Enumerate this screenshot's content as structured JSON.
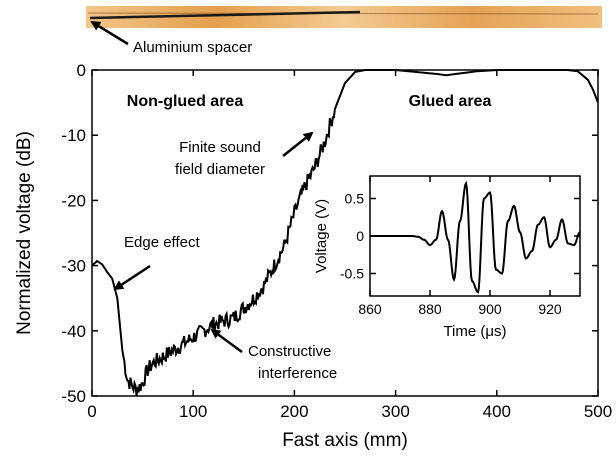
{
  "chart_data": [
    {
      "type": "line",
      "xlabel": "Fast axis (mm)",
      "ylabel": "Normalized voltage (dB)",
      "xlim": [
        0,
        500
      ],
      "ylim": [
        -50,
        0
      ],
      "xticks": [
        "0",
        "100",
        "200",
        "300",
        "400",
        "500"
      ],
      "yticks": [
        "0",
        "-10",
        "-20",
        "-30",
        "-40",
        "-50"
      ],
      "grid": false,
      "series": [
        {
          "x": [
            0,
            5,
            10,
            15,
            20,
            25,
            30,
            35,
            40,
            45,
            50,
            55,
            60,
            70,
            80,
            90,
            100,
            110,
            120,
            130,
            140,
            150,
            160,
            170,
            180,
            190,
            200,
            210,
            220,
            230,
            240,
            250,
            260,
            270,
            280,
            290,
            300,
            320,
            340,
            350,
            360,
            380,
            400,
            420,
            440,
            460,
            470,
            480,
            490,
            495,
            500
          ],
          "y": [
            -30,
            -29.3,
            -29.8,
            -31,
            -32,
            -35,
            -43,
            -47.5,
            -48.5,
            -49,
            -48,
            -46,
            -45,
            -44,
            -43,
            -42,
            -41,
            -40,
            -39,
            -38.5,
            -38,
            -36.5,
            -35,
            -33,
            -30,
            -27,
            -22,
            -18,
            -15,
            -11,
            -6,
            -2,
            -0.3,
            0,
            0,
            0,
            0,
            -0.3,
            -0.6,
            -0.8,
            -0.6,
            -0.2,
            0,
            0,
            0,
            0,
            0,
            -0.2,
            -1.5,
            -3,
            -5
          ]
        }
      ],
      "annotations": {
        "non_glued": "Non-glued area",
        "glued": "Glued area",
        "finite_line1": "Finite sound",
        "finite_line2": "field diameter",
        "edge": "Edge effect",
        "constructive_line1": "Constructive",
        "constructive_line2": "interference"
      }
    },
    {
      "type": "line",
      "xlabel": "Time (μs)",
      "ylabel": "Voltage (V)",
      "xlim": [
        860,
        930
      ],
      "ylim": [
        -0.8,
        0.8
      ],
      "xticks": [
        "860",
        "880",
        "900",
        "920"
      ],
      "yticks": [
        "0.5",
        "0",
        "-0.5"
      ],
      "grid": false,
      "series": [
        {
          "x": [
            860,
            870,
            874,
            876,
            878,
            880,
            882,
            884,
            886,
            888,
            890,
            892,
            894,
            896,
            898,
            900,
            902,
            904,
            906,
            908,
            910,
            912,
            914,
            916,
            918,
            920,
            922,
            924,
            926,
            928,
            930
          ],
          "y": [
            0,
            0,
            0,
            -0.01,
            -0.05,
            -0.12,
            -0.05,
            0.33,
            -0.05,
            -0.58,
            0.2,
            0.7,
            -0.6,
            -0.75,
            0.5,
            0.58,
            -0.45,
            -0.5,
            0.2,
            0.4,
            0.05,
            -0.3,
            -0.2,
            0.15,
            0.25,
            -0.15,
            -0.05,
            0.22,
            -0.1,
            -0.12,
            0.05
          ]
        }
      ]
    }
  ],
  "photo": {
    "label": "Aluminium spacer",
    "wood_color": "#e8a95c"
  }
}
